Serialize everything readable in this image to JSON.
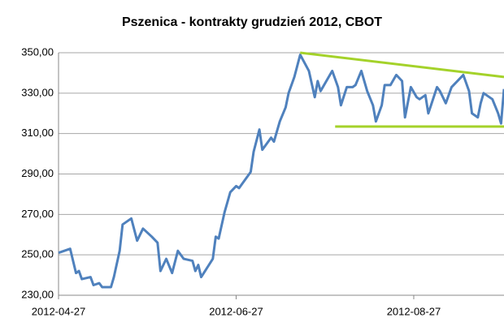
{
  "chart_data": {
    "type": "line",
    "title": "Pszenica - kontrakty grudzień 2012, CBOT",
    "x": [
      "2012-04-27",
      "2012-05-01",
      "2012-05-03",
      "2012-05-04",
      "2012-05-05",
      "2012-05-08",
      "2012-05-09",
      "2012-05-11",
      "2012-05-12",
      "2012-05-15",
      "2012-05-16",
      "2012-05-18",
      "2012-05-19",
      "2012-05-22",
      "2012-05-24",
      "2012-05-26",
      "2012-05-29",
      "2012-05-31",
      "2012-06-01",
      "2012-06-03",
      "2012-06-05",
      "2012-06-07",
      "2012-06-09",
      "2012-06-12",
      "2012-06-13",
      "2012-06-14",
      "2012-06-15",
      "2012-06-19",
      "2012-06-20",
      "2012-06-21",
      "2012-06-23",
      "2012-06-25",
      "2012-06-27",
      "2012-06-28",
      "2012-06-30",
      "2012-07-02",
      "2012-07-03",
      "2012-07-05",
      "2012-07-06",
      "2012-07-09",
      "2012-07-10",
      "2012-07-12",
      "2012-07-14",
      "2012-07-15",
      "2012-07-17",
      "2012-07-19",
      "2012-07-22",
      "2012-07-24",
      "2012-07-25",
      "2012-07-26",
      "2012-07-28",
      "2012-07-30",
      "2012-08-01",
      "2012-08-02",
      "2012-08-04",
      "2012-08-06",
      "2012-08-07",
      "2012-08-09",
      "2012-08-11",
      "2012-08-13",
      "2012-08-14",
      "2012-08-16",
      "2012-08-17",
      "2012-08-19",
      "2012-08-21",
      "2012-08-23",
      "2012-08-24",
      "2012-08-26",
      "2012-08-28",
      "2012-08-29",
      "2012-08-31",
      "2012-09-01",
      "2012-09-04",
      "2012-09-05",
      "2012-09-07",
      "2012-09-09",
      "2012-09-13",
      "2012-09-15",
      "2012-09-16",
      "2012-09-18",
      "2012-09-19",
      "2012-09-20",
      "2012-09-23",
      "2012-09-25",
      "2012-09-26",
      "2012-09-27"
    ],
    "values": [
      251,
      253,
      241,
      242,
      238,
      239,
      235,
      236,
      234,
      234,
      239,
      252,
      265,
      268,
      257,
      263,
      259,
      256,
      242,
      248,
      241,
      252,
      248,
      247,
      242,
      245,
      239,
      248,
      259,
      258,
      271,
      281,
      284,
      283,
      287,
      291,
      301,
      312,
      302,
      308,
      306,
      316,
      323,
      330,
      338,
      349,
      341,
      328,
      336,
      331,
      336,
      341,
      333,
      324,
      333,
      333,
      334,
      341,
      331,
      324,
      316,
      324,
      334,
      334,
      339,
      336,
      318,
      333,
      328,
      327,
      329,
      320,
      333,
      331,
      325,
      333,
      339,
      331,
      320,
      318,
      325,
      330,
      327,
      320,
      315,
      332
    ],
    "color": "#4f81bd",
    "trendlines": [
      {
        "x": [
          "2012-07-19",
          "2012-09-27"
        ],
        "values": [
          350,
          338
        ],
        "color": "#a4d22a"
      },
      {
        "x": [
          "2012-07-31",
          "2012-09-27"
        ],
        "values": [
          313.5,
          313.5
        ],
        "color": "#a4d22a"
      }
    ],
    "xlim": [
      "2012-04-27",
      "2012-09-27"
    ],
    "xticks": [
      "2012-04-27",
      "2012-06-27",
      "2012-08-27"
    ],
    "ylim": [
      230,
      350
    ],
    "yticks": [
      {
        "value": 230,
        "label": "230,00"
      },
      {
        "value": 250,
        "label": "250,00"
      },
      {
        "value": 270,
        "label": "270,00"
      },
      {
        "value": 290,
        "label": "290,00"
      },
      {
        "value": 310,
        "label": "310,00"
      },
      {
        "value": 330,
        "label": "330,00"
      },
      {
        "value": 350,
        "label": "350,00"
      }
    ],
    "grid": true
  }
}
